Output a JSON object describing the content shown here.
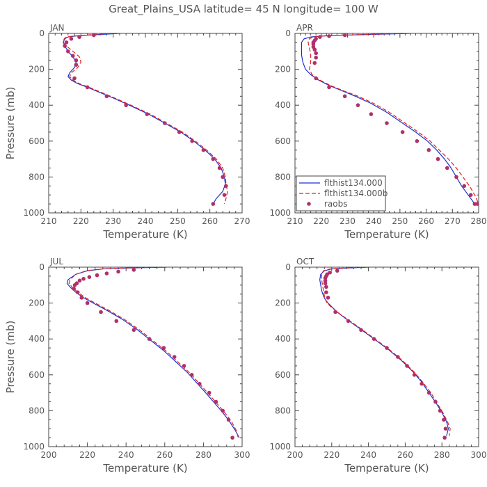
{
  "figure_title": "Great_Plains_USA   latitude= 45 N longitude= 100 W",
  "colors": {
    "model1": "#1f2fd0",
    "model2": "#e02020",
    "obs": "#b0306a",
    "axis": "#444444",
    "text": "#555555"
  },
  "chart_data": [
    {
      "type": "line",
      "panel": "JAN",
      "xlabel": "Temperature (K)",
      "ylabel": "Pressure (mb)",
      "xlim": [
        210,
        270
      ],
      "ylim": [
        1000,
        0
      ],
      "xticks": [
        210,
        220,
        230,
        240,
        250,
        260,
        270
      ],
      "yticks": [
        0,
        200,
        400,
        600,
        800,
        1000
      ],
      "show_legend": false,
      "series": [
        {
          "name": "flthist134.000",
          "style": "solid",
          "color": "#1f2fd0",
          "x": [
            232,
            222,
            218,
            216,
            215,
            214.5,
            215,
            216,
            217.5,
            218.5,
            218,
            216.5,
            216,
            217,
            219,
            222,
            226,
            230,
            235,
            241,
            246,
            251,
            255,
            258.5,
            261.5,
            263.5,
            264.5,
            264.8,
            264,
            262,
            261
          ],
          "y": [
            0,
            10,
            15,
            20,
            30,
            50,
            70,
            100,
            130,
            160,
            190,
            220,
            240,
            260,
            280,
            300,
            330,
            360,
            400,
            450,
            500,
            550,
            600,
            650,
            700,
            750,
            800,
            840,
            880,
            920,
            950
          ]
        },
        {
          "name": "flthist134.000b",
          "style": "dashed",
          "color": "#e02020",
          "x": [
            229,
            221,
            217.5,
            215.5,
            214.8,
            214.5,
            215.5,
            217.5,
            219.5,
            220,
            219,
            217,
            216.5,
            217.5,
            219.5,
            222.5,
            226.5,
            230.5,
            235.5,
            241.5,
            246.5,
            251.5,
            255.5,
            259,
            262,
            264,
            264.8,
            265,
            265.5,
            265,
            264.5
          ],
          "y": [
            0,
            10,
            15,
            20,
            30,
            50,
            70,
            100,
            130,
            160,
            190,
            220,
            240,
            260,
            280,
            300,
            330,
            360,
            400,
            450,
            500,
            550,
            600,
            650,
            700,
            750,
            800,
            840,
            880,
            920,
            950
          ]
        },
        {
          "name": "raobs",
          "style": "markers",
          "color": "#b0306a",
          "x": [
            224,
            219.5,
            217,
            215.5,
            215,
            216,
            217.5,
            218.5,
            218.5,
            218,
            222,
            228,
            234,
            240.5,
            246,
            250.5,
            254.5,
            258,
            261,
            263,
            264,
            265,
            264.5,
            261
          ],
          "y": [
            10,
            20,
            30,
            50,
            70,
            100,
            125,
            150,
            175,
            250,
            300,
            350,
            400,
            450,
            500,
            550,
            600,
            650,
            700,
            750,
            800,
            850,
            900,
            950
          ]
        }
      ]
    },
    {
      "type": "line",
      "panel": "APR",
      "xlabel": "Temperature (K)",
      "ylabel": "",
      "xlim": [
        210,
        280
      ],
      "ylim": [
        1000,
        0
      ],
      "xticks": [
        210,
        220,
        230,
        240,
        250,
        260,
        270,
        280
      ],
      "yticks": [
        0,
        200,
        400,
        600,
        800,
        1000
      ],
      "show_legend": true,
      "legend_position": "bottom-left",
      "series": [
        {
          "name": "flthist134.000",
          "style": "solid",
          "color": "#1f2fd0",
          "x": [
            254,
            228,
            220,
            216,
            213.5,
            212.5,
            212.5,
            212.5,
            213,
            214,
            216,
            219,
            223,
            228,
            233,
            239,
            245,
            251,
            256,
            260.5,
            264,
            267,
            269.5,
            271.5,
            273.5,
            276,
            278.5
          ],
          "y": [
            0,
            10,
            15,
            20,
            30,
            50,
            80,
            120,
            160,
            200,
            230,
            260,
            290,
            320,
            350,
            390,
            440,
            500,
            550,
            600,
            650,
            700,
            750,
            800,
            850,
            900,
            950
          ]
        },
        {
          "name": "flthist134.000b",
          "style": "dashed",
          "color": "#e02020",
          "x": [
            250,
            228,
            220,
            217,
            215.5,
            215,
            215.5,
            216,
            216,
            215.5,
            216.5,
            219.5,
            223.5,
            228.5,
            234,
            240,
            246,
            252,
            257,
            261.5,
            265,
            268.5,
            271.5,
            274,
            276.5,
            278.5,
            280
          ],
          "y": [
            0,
            10,
            15,
            20,
            30,
            50,
            80,
            120,
            160,
            200,
            230,
            260,
            290,
            320,
            350,
            390,
            440,
            500,
            550,
            600,
            650,
            700,
            750,
            800,
            850,
            900,
            950
          ]
        },
        {
          "name": "raobs",
          "style": "markers",
          "color": "#b0306a",
          "x": [
            229,
            223,
            219.5,
            218,
            217.5,
            217,
            217,
            217,
            217.5,
            218,
            218,
            217.5,
            218,
            223,
            229,
            234,
            239,
            245,
            251,
            256.5,
            261,
            264.5,
            268,
            271.5,
            274.5,
            277,
            278.5,
            279.5
          ],
          "y": [
            10,
            15,
            20,
            30,
            40,
            50,
            60,
            75,
            90,
            110,
            135,
            165,
            250,
            300,
            350,
            400,
            450,
            500,
            550,
            600,
            650,
            700,
            750,
            800,
            850,
            900,
            950,
            950
          ]
        }
      ]
    },
    {
      "type": "line",
      "panel": "JUL",
      "xlabel": "Temperature (K)",
      "ylabel": "Pressure (mb)",
      "xlim": [
        200,
        300
      ],
      "ylim": [
        1000,
        0
      ],
      "xticks": [
        200,
        220,
        240,
        260,
        280,
        300
      ],
      "yticks": [
        0,
        200,
        400,
        600,
        800,
        1000
      ],
      "show_legend": false,
      "series": [
        {
          "name": "flthist134.000",
          "style": "solid",
          "color": "#1f2fd0",
          "x": [
            261,
            240,
            228,
            220,
            214,
            210,
            209.5,
            211,
            214,
            218,
            223,
            230,
            238,
            246,
            253,
            260,
            266,
            272,
            277,
            282,
            286,
            290,
            293.5,
            296.5,
            298.5
          ],
          "y": [
            0,
            5,
            10,
            20,
            40,
            70,
            90,
            110,
            140,
            170,
            200,
            240,
            290,
            350,
            410,
            470,
            530,
            590,
            650,
            710,
            760,
            810,
            860,
            910,
            950
          ]
        },
        {
          "name": "flthist134.000b",
          "style": "dashed",
          "color": "#e02020",
          "x": [
            258,
            238,
            227,
            219.5,
            214,
            211,
            210.5,
            212,
            215,
            219,
            224,
            231,
            239,
            247,
            254,
            261,
            267,
            273,
            278,
            283,
            287,
            291,
            294.5,
            297,
            298
          ],
          "y": [
            0,
            5,
            10,
            20,
            40,
            70,
            90,
            110,
            140,
            170,
            200,
            240,
            290,
            350,
            410,
            470,
            530,
            590,
            650,
            710,
            760,
            810,
            860,
            910,
            950
          ]
        },
        {
          "name": "raobs",
          "style": "markers",
          "color": "#b0306a",
          "x": [
            244,
            236,
            230,
            225,
            221,
            218,
            216,
            214.5,
            213.5,
            213,
            215,
            217,
            220,
            227,
            235,
            244,
            252,
            259.5,
            265,
            270,
            274,
            278,
            283,
            286.5,
            290,
            293,
            295
          ],
          "y": [
            15,
            25,
            35,
            45,
            55,
            65,
            75,
            90,
            100,
            120,
            140,
            170,
            200,
            250,
            300,
            350,
            400,
            450,
            500,
            550,
            600,
            650,
            700,
            750,
            800,
            850,
            950
          ]
        }
      ]
    },
    {
      "type": "line",
      "panel": "OCT",
      "xlabel": "Temperature (K)",
      "ylabel": "",
      "xlim": [
        200,
        300
      ],
      "ylim": [
        1000,
        0
      ],
      "xticks": [
        200,
        220,
        240,
        260,
        280,
        300
      ],
      "yticks": [
        0,
        200,
        400,
        600,
        800,
        1000
      ],
      "show_legend": false,
      "series": [
        {
          "name": "flthist134.000",
          "style": "solid",
          "color": "#1f2fd0",
          "x": [
            240,
            228,
            220,
            216,
            214,
            213.5,
            214,
            214.5,
            215.5,
            216.5,
            218,
            220,
            223,
            228,
            235,
            243,
            251,
            258,
            264,
            269,
            273,
            277,
            280,
            282.5,
            283.5,
            282.5
          ],
          "y": [
            0,
            5,
            10,
            20,
            40,
            70,
            100,
            130,
            160,
            180,
            200,
            220,
            250,
            290,
            340,
            400,
            460,
            520,
            580,
            640,
            700,
            760,
            810,
            860,
            900,
            940
          ]
        },
        {
          "name": "flthist134.000b",
          "style": "dashed",
          "color": "#e02020",
          "x": [
            237,
            226,
            219,
            215.5,
            214.5,
            214.5,
            215,
            215.5,
            216,
            216.5,
            217.5,
            219.5,
            223,
            228.5,
            235.5,
            243.5,
            251.5,
            258.5,
            264.5,
            269.5,
            274,
            277.5,
            280.5,
            283,
            284.5,
            284
          ],
          "y": [
            0,
            5,
            10,
            20,
            40,
            70,
            100,
            130,
            160,
            180,
            200,
            220,
            250,
            290,
            340,
            400,
            460,
            520,
            580,
            640,
            700,
            760,
            810,
            860,
            900,
            940
          ]
        },
        {
          "name": "raobs",
          "style": "markers",
          "color": "#b0306a",
          "x": [
            223,
            219,
            217.5,
            217,
            216.5,
            216.5,
            216.5,
            217,
            217,
            218,
            222,
            229,
            236,
            243,
            250,
            256,
            261,
            265,
            269,
            273,
            276.5,
            279,
            281,
            282,
            281.5
          ],
          "y": [
            20,
            30,
            40,
            50,
            60,
            75,
            90,
            110,
            140,
            170,
            250,
            300,
            350,
            400,
            450,
            500,
            550,
            600,
            650,
            700,
            750,
            800,
            850,
            900,
            950
          ]
        }
      ]
    }
  ]
}
